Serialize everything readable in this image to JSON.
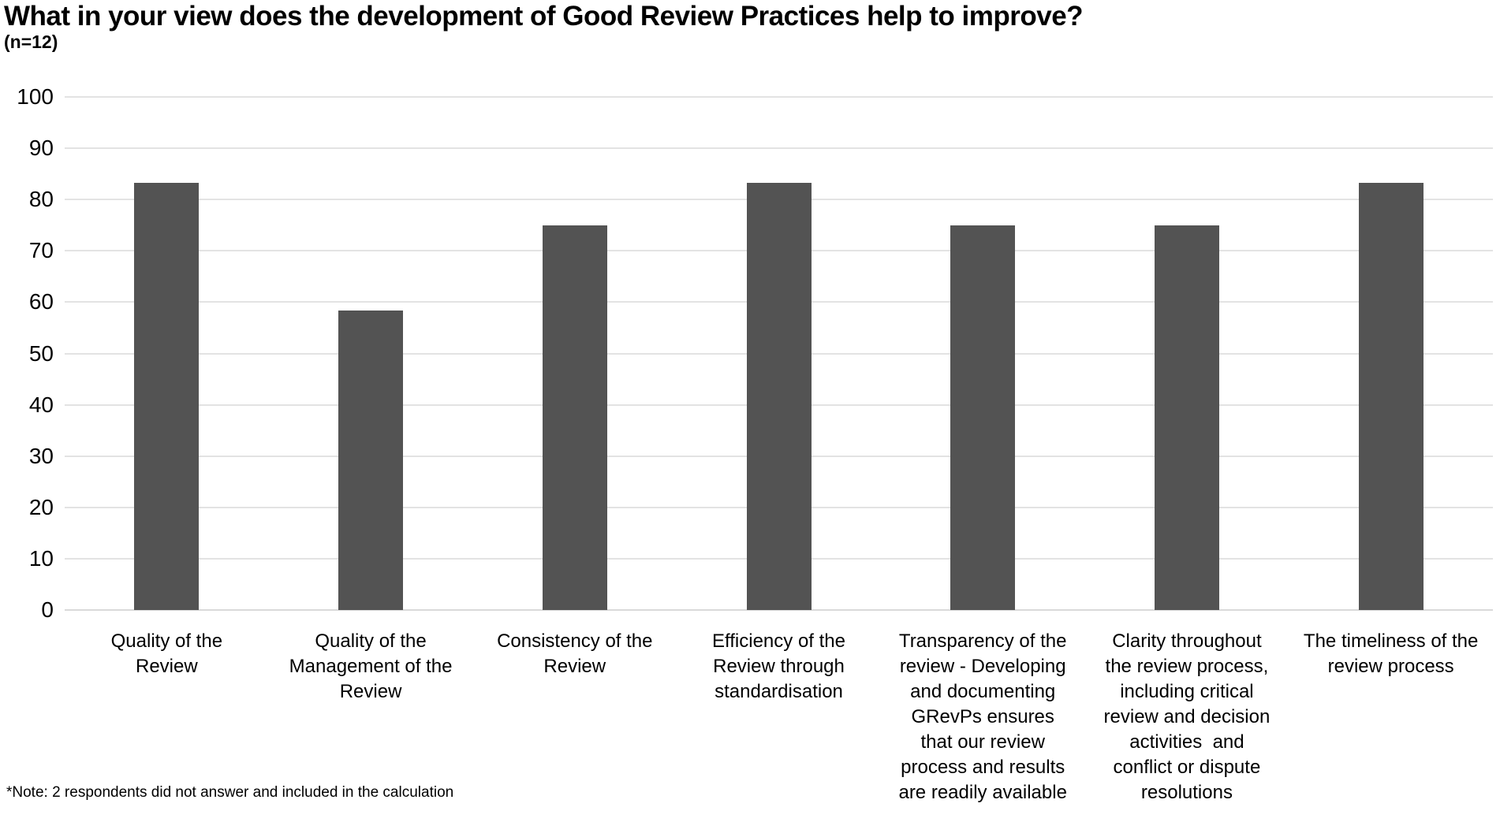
{
  "chart_data": {
    "type": "bar",
    "title": "What in your view does the development of Good Review Practices help to improve?",
    "subtitle": "(n=12)",
    "note": "*Note: 2 respondents did not answer and included in the calculation",
    "categories": [
      "Quality of the\nReview",
      "Quality of the\nManagement of the\nReview",
      "Consistency of the\nReview",
      "Efficiency of the\nReview through\nstandardisation",
      "Transparency of the\nreview - Developing\nand documenting\nGRevPs ensures\nthat our review\nprocess and results\nare readily available",
      "Clarity throughout\nthe review process,\nincluding critical\nreview and decision\nactivities  and\nconflict or dispute\nresolutions",
      "The timeliness of the\nreview process"
    ],
    "values": [
      83.3,
      58.3,
      75,
      83.3,
      75,
      75,
      83.3
    ],
    "yticks": [
      0,
      10,
      20,
      30,
      40,
      50,
      60,
      70,
      80,
      90,
      100
    ],
    "ylim": [
      0,
      100
    ],
    "xlabel": "",
    "ylabel": "",
    "grid": "horizontal",
    "legend": "none",
    "bar_color": "#535353",
    "gridline_color": "#e3e3e3",
    "baseline_color": "#d9d9d9",
    "text_color": "#000000"
  }
}
